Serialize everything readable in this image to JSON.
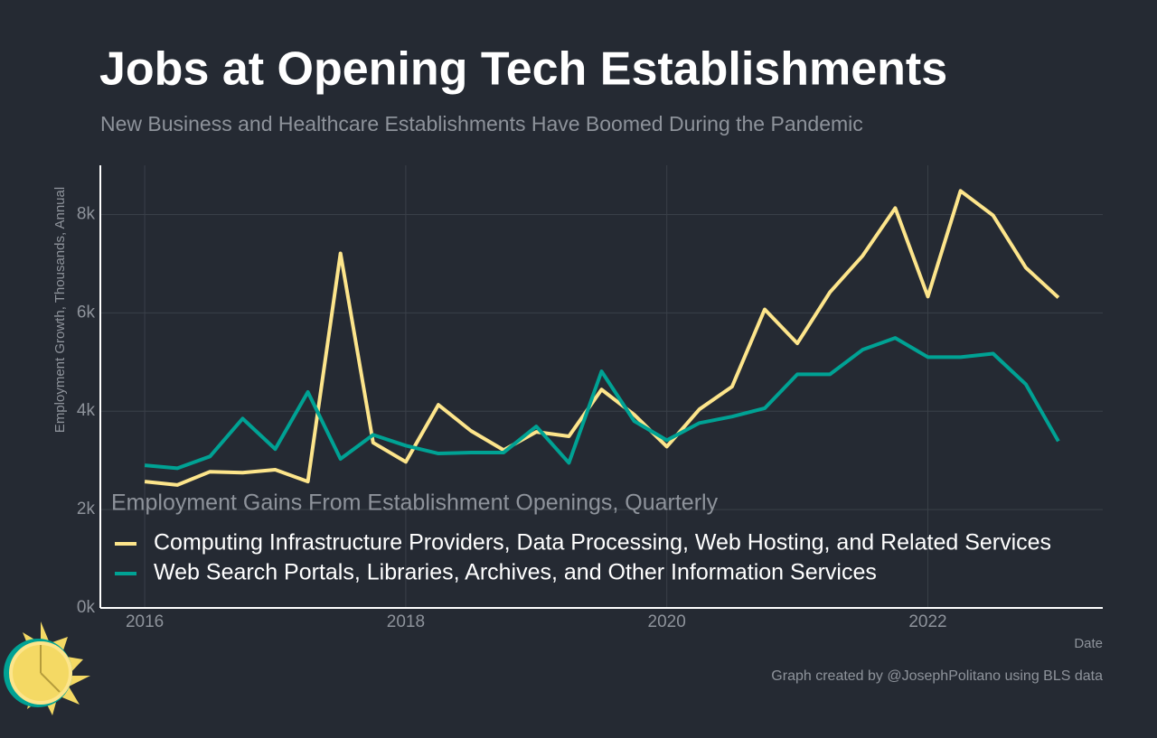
{
  "chart_data": {
    "type": "line",
    "title": "Jobs at Opening Tech Establishments",
    "subtitle": "New Business and Healthcare Establishments Have Boomed During the Pandemic",
    "y_label": "Employment Growth, Thousands, Annual",
    "x_label": "Date",
    "caption": "Graph created by @JosephPolitano using BLS data",
    "legend_title": "Employment Gains From Establishment Openings, Quarterly",
    "legend_position": "lower-left",
    "grid": true,
    "x": [
      2016,
      2016.25,
      2016.5,
      2016.75,
      2017,
      2017.25,
      2017.5,
      2017.75,
      2018,
      2018.25,
      2018.5,
      2018.75,
      2019,
      2019.25,
      2019.5,
      2019.75,
      2020,
      2020.25,
      2020.5,
      2020.75,
      2021,
      2021.25,
      2021.5,
      2021.75,
      2022,
      2022.25,
      2022.5,
      2022.75,
      2023
    ],
    "xlim": [
      2015.66,
      2023.34
    ],
    "xticks": [
      2016,
      2018,
      2020,
      2022
    ],
    "ylim": [
      0,
      9000
    ],
    "yticks": [
      {
        "value": 0,
        "label": "0k"
      },
      {
        "value": 2000,
        "label": "2k"
      },
      {
        "value": 4000,
        "label": "4k"
      },
      {
        "value": 6000,
        "label": "6k"
      },
      {
        "value": 8000,
        "label": "8k"
      }
    ],
    "series": [
      {
        "name": "Computing Infrastructure Providers, Data Processing, Web Hosting, and Related Services",
        "color": "#fde58b",
        "values": [
          2570,
          2500,
          2770,
          2750,
          2810,
          2570,
          7210,
          3360,
          2970,
          4130,
          3600,
          3210,
          3580,
          3490,
          4440,
          3930,
          3280,
          4040,
          4500,
          6070,
          5380,
          6420,
          7160,
          8130,
          6330,
          8480,
          7980,
          6920,
          6310
        ]
      },
      {
        "name": "Web Search Portals, Libraries, Archives, and Other Information Services",
        "color": "#00a294",
        "values": [
          2900,
          2840,
          3080,
          3850,
          3230,
          4390,
          3030,
          3520,
          3300,
          3140,
          3160,
          3160,
          3690,
          2950,
          4810,
          3800,
          3410,
          3760,
          3890,
          4060,
          4750,
          4750,
          5250,
          5490,
          5100,
          5100,
          5170,
          4550,
          3390
        ]
      }
    ]
  }
}
